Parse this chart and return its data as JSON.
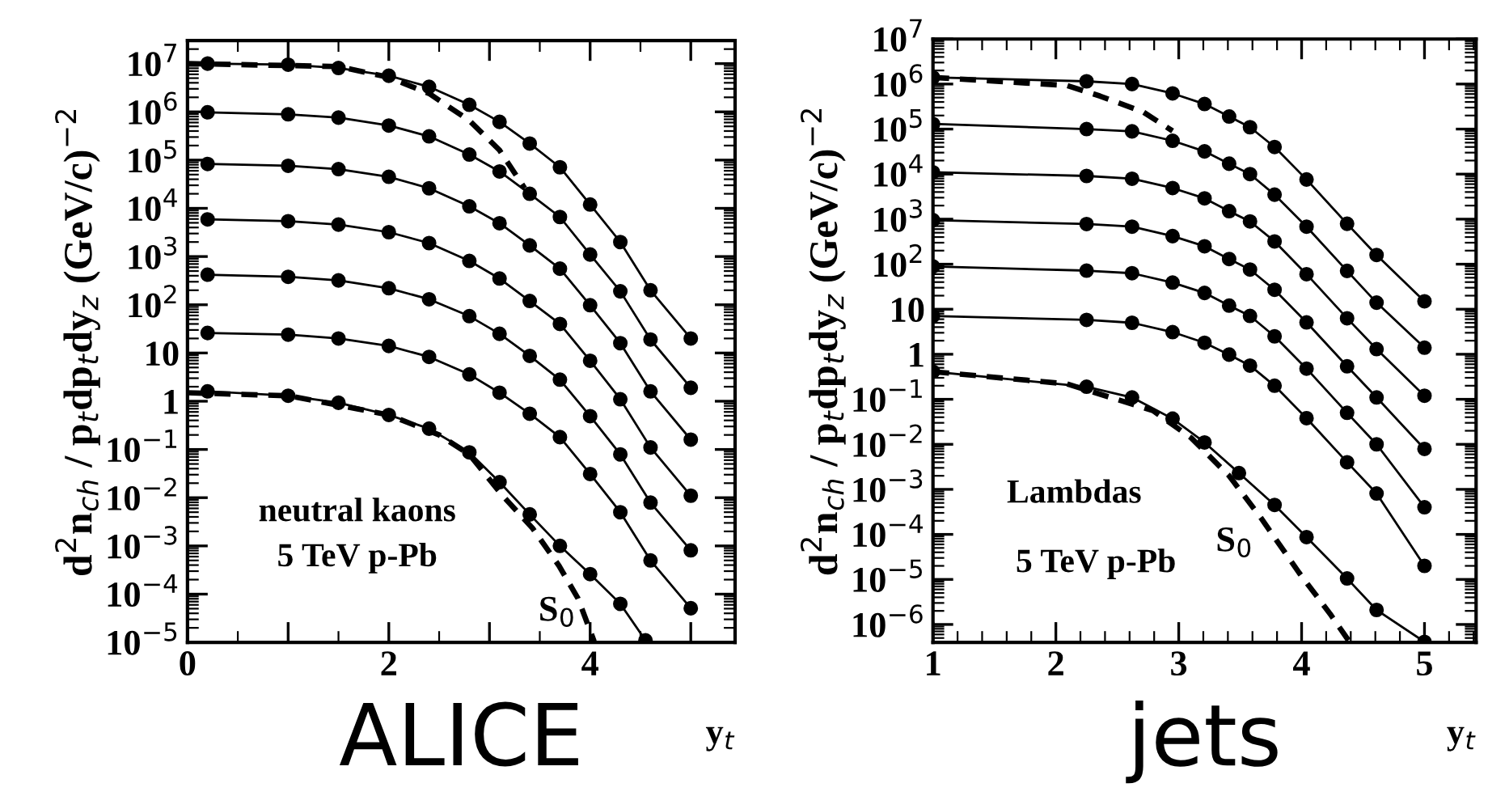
{
  "chart_data": [
    {
      "type": "line",
      "xlabel": "y$_{t}$",
      "ylabel": "d$^{2}$n$_{ch}$ / p$_{t}$dp$_{t}$dy$_{z}$ (GeV/c)$^{−2}$",
      "log": "y",
      "xlim": [
        0,
        5.44
      ],
      "xticks": [
        0,
        {
          "value": 1,
          "label": null
        },
        2,
        {
          "value": 3,
          "label": null
        },
        4,
        {
          "value": 5,
          "label": null
        }
      ],
      "ylim": [
        1e-05,
        30000000.0
      ],
      "yticks": [
        {
          "value": 1e-05,
          "label": "10$^{−5}$"
        },
        {
          "value": 0.0001,
          "label": "10$^{−4}$"
        },
        {
          "value": 0.001,
          "label": "10$^{−3}$"
        },
        {
          "value": 0.01,
          "label": "10$^{−2}$"
        },
        {
          "value": 0.1,
          "label": "10$^{−1}$"
        },
        1,
        10,
        {
          "value": 100,
          "label": "10$^{2}$"
        },
        {
          "value": 1000,
          "label": "10$^{3}$"
        },
        {
          "value": 10000.0,
          "label": "10$^{4}$"
        },
        {
          "value": 100000.0,
          "label": "10$^{5}$"
        },
        {
          "value": 1000000.0,
          "label": "10$^{6}$"
        },
        {
          "value": 10000000.0,
          "label": "10$^{7}$"
        }
      ],
      "annotations": [
        "neutral kaons",
        "5 TeV p-Pb",
        "S$_{0}$",
        "ALICE"
      ],
      "series": [
        {
          "color": "#000000",
          "marker": "circle",
          "line_style": "solid",
          "x": [
            0.2,
            1.0,
            1.5,
            2.0,
            2.4,
            2.8,
            3.1,
            3.4,
            3.7,
            4.0,
            4.3,
            4.6,
            5.0
          ],
          "values": [
            10000000.0,
            9500000.0,
            8100000.0,
            5600000.0,
            3300000.0,
            1400000.0,
            620000.0,
            220000.0,
            71000.0,
            12000.0,
            2000.0,
            200.0,
            20
          ]
        },
        {
          "color": "#000000",
          "marker": "circle",
          "line_style": "solid",
          "x": [
            0.2,
            1.0,
            1.5,
            2.0,
            2.4,
            2.8,
            3.1,
            3.4,
            3.7,
            4.0,
            4.3,
            4.6,
            5.0
          ],
          "values": [
            980000.0,
            890000.0,
            760000.0,
            520000.0,
            310000.0,
            130000.0,
            58000.0,
            20000.0,
            6600.0,
            1100.0,
            190.0,
            19,
            1.9
          ]
        },
        {
          "color": "#000000",
          "marker": "circle",
          "line_style": "solid",
          "x": [
            0.2,
            1.0,
            1.5,
            2.0,
            2.4,
            2.8,
            3.1,
            3.4,
            3.7,
            4.0,
            4.3,
            4.6,
            5.0
          ],
          "values": [
            83000.0,
            76000.0,
            65000.0,
            45000.0,
            26000.0,
            11000.0,
            4900.0,
            1700.0,
            560.0,
            98,
            16,
            1.6,
            0.16
          ]
        },
        {
          "color": "#000000",
          "marker": "circle",
          "line_style": "solid",
          "x": [
            0.2,
            1.0,
            1.5,
            2.0,
            2.4,
            2.8,
            3.1,
            3.4,
            3.7,
            4.0,
            4.3,
            4.6,
            5.0
          ],
          "values": [
            5900.0,
            5400.0,
            4600.0,
            3200.0,
            1900.0,
            810.0,
            350.0,
            120.0,
            40,
            6.9,
            1.1,
            0.11,
            0.011
          ]
        },
        {
          "color": "#000000",
          "marker": "circle",
          "line_style": "solid",
          "x": [
            0.2,
            1.0,
            1.5,
            2.0,
            2.4,
            2.8,
            3.1,
            3.4,
            3.7,
            4.0,
            4.3,
            4.6,
            5.0
          ],
          "values": [
            420.0,
            380.0,
            320.0,
            220.0,
            130.0,
            58,
            25,
            8.7,
            2.8,
            0.49,
            0.079,
            0.0079,
            0.00081
          ]
        },
        {
          "color": "#000000",
          "marker": "circle",
          "line_style": "solid",
          "x": [
            0.2,
            1.0,
            1.5,
            2.0,
            2.4,
            2.8,
            3.1,
            3.4,
            3.7,
            4.0,
            4.3,
            4.6,
            5.0
          ],
          "values": [
            26,
            24,
            20,
            14,
            8.3,
            3.6,
            1.5,
            0.55,
            0.18,
            0.031,
            0.005,
            0.0005,
            5.1e-05
          ]
        },
        {
          "color": "#000000",
          "marker": "circle",
          "line_style": "solid",
          "x": [
            0.2,
            1.0,
            1.5,
            2.0,
            2.4,
            2.8,
            3.1,
            3.4,
            3.7,
            4.0,
            4.3,
            4.55
          ],
          "values": [
            1.6,
            1.3,
            0.93,
            0.52,
            0.27,
            0.087,
            0.021,
            0.0045,
            0.001,
            0.00026,
            6.3e-05,
            1.1e-05
          ]
        },
        {
          "color": "#000000",
          "marker": "none",
          "line_style": "dashed",
          "x": [
            0,
            1.5,
            2.0,
            2.4,
            2.8,
            3.1,
            3.35
          ],
          "values": [
            10000000.0,
            8700000.0,
            5200000.0,
            2400000.0,
            660000.0,
            160000.0,
            26000.0
          ]
        },
        {
          "color": "#000000",
          "marker": "none",
          "line_style": "dashed",
          "x": [
            0,
            1.0,
            2.0,
            2.5,
            2.8,
            3.13,
            3.43,
            3.69,
            3.88,
            4.04
          ],
          "values": [
            1.5,
            1.3,
            0.52,
            0.2,
            0.079,
            0.011,
            0.0023,
            0.00039,
            8.1e-05,
            1.05e-05
          ]
        }
      ]
    },
    {
      "type": "line",
      "xlabel": "y$_{t}$",
      "ylabel": "d$^{2}$n$_{ch}$ / p$_{t}$dp$_{t}$dy$_{z}$ (GeV/c)$^{−2}$",
      "log": "y",
      "xlim": [
        1,
        5.42
      ],
      "xticks": [
        1,
        2,
        3,
        4,
        5
      ],
      "ylim": [
        4e-07,
        10000000.0
      ],
      "yticks": [
        {
          "value": 1e-06,
          "label": "10$^{−6}$"
        },
        {
          "value": 1e-05,
          "label": "10$^{−5}$"
        },
        {
          "value": 0.0001,
          "label": "10$^{−4}$"
        },
        {
          "value": 0.001,
          "label": "10$^{−3}$"
        },
        {
          "value": 0.01,
          "label": "10$^{−2}$"
        },
        {
          "value": 0.1,
          "label": "10$^{−1}$"
        },
        1,
        10,
        {
          "value": 100,
          "label": "10$^{2}$"
        },
        {
          "value": 1000,
          "label": "10$^{3}$"
        },
        {
          "value": 10000.0,
          "label": "10$^{4}$"
        },
        {
          "value": 100000.0,
          "label": "10$^{5}$"
        },
        {
          "value": 1000000.0,
          "label": "10$^{6}$"
        },
        {
          "value": 10000000.0,
          "label": "10$^{7}$"
        }
      ],
      "annotations": [
        "Lambdas",
        "5 TeV p-Pb",
        "S$_{0}$",
        "jets"
      ],
      "series": [
        {
          "color": "#000000",
          "marker": "circle",
          "line_style": "solid",
          "x": [
            1.0,
            2.25,
            2.62,
            2.95,
            3.21,
            3.41,
            3.58,
            3.78,
            4.04,
            4.37,
            4.61,
            5.0
          ],
          "values": [
            1400000.0,
            1150000.0,
            1000000.0,
            620000.0,
            360000.0,
            190000.0,
            110000.0,
            40000.0,
            7600.0,
            790.0,
            160.0,
            15
          ]
        },
        {
          "color": "#000000",
          "marker": "circle",
          "line_style": "solid",
          "x": [
            1.0,
            2.25,
            2.62,
            2.95,
            3.21,
            3.41,
            3.58,
            3.78,
            4.04,
            4.37,
            4.61,
            5.0
          ],
          "values": [
            130000.0,
            100000.0,
            89000.0,
            55000.0,
            32000.0,
            17000.0,
            10000.0,
            3500.0,
            680.0,
            71,
            14,
            1.4
          ]
        },
        {
          "color": "#000000",
          "marker": "circle",
          "line_style": "solid",
          "x": [
            1.0,
            2.25,
            2.62,
            2.95,
            3.21,
            3.41,
            3.58,
            3.78,
            4.04,
            4.37,
            4.61,
            5.0
          ],
          "values": [
            11000.0,
            9100.0,
            7900.0,
            4900.0,
            2900.0,
            1500.0,
            890.0,
            320.0,
            60,
            6.3,
            1.3,
            0.12
          ]
        },
        {
          "color": "#000000",
          "marker": "circle",
          "line_style": "solid",
          "x": [
            1.0,
            2.25,
            2.62,
            2.95,
            3.21,
            3.41,
            3.58,
            3.78,
            4.04,
            4.37,
            4.61,
            5.0
          ],
          "values": [
            950.0,
            780.0,
            680.0,
            420.0,
            250.0,
            130.0,
            76,
            27,
            5.1,
            0.54,
            0.11,
            0.0079
          ]
        },
        {
          "color": "#000000",
          "marker": "circle",
          "line_style": "solid",
          "x": [
            1.0,
            2.25,
            2.62,
            2.95,
            3.21,
            3.41,
            3.58,
            3.78,
            4.04,
            4.37,
            4.61,
            5.0
          ],
          "values": [
            89,
            72,
            63,
            39,
            23,
            12,
            7.1,
            2.5,
            0.48,
            0.05,
            0.01,
            0.0004
          ]
        },
        {
          "color": "#000000",
          "marker": "circle",
          "line_style": "solid",
          "x": [
            1.0,
            2.25,
            2.62,
            2.95,
            3.21,
            3.41,
            3.58,
            3.78,
            4.04,
            4.37,
            4.61,
            5.0
          ],
          "values": [
            7.1,
            5.8,
            5.0,
            3.1,
            1.8,
            0.98,
            0.56,
            0.2,
            0.038,
            0.004,
            0.00081,
            2e-05
          ]
        },
        {
          "color": "#000000",
          "marker": "circle",
          "line_style": "solid",
          "x": [
            1.0,
            2.25,
            2.62,
            2.95,
            3.21,
            3.49,
            3.78,
            4.04,
            4.37,
            4.61,
            5.0
          ],
          "values": [
            0.41,
            0.19,
            0.11,
            0.037,
            0.011,
            0.0023,
            0.00045,
            8.7e-05,
            1.05e-05,
            2.1e-06,
            4.1e-07
          ]
        },
        {
          "color": "#000000",
          "marker": "none",
          "line_style": "dashed",
          "x": [
            1.0,
            2.09,
            2.36,
            2.71,
            2.95
          ],
          "values": [
            1400000.0,
            930000.0,
            540000.0,
            240000.0,
            91000.0
          ]
        },
        {
          "color": "#000000",
          "marker": "none",
          "line_style": "dashed",
          "x": [
            1.0,
            2.09,
            2.79,
            3.1,
            3.41,
            3.67,
            3.98,
            4.24,
            4.39
          ],
          "values": [
            0.41,
            0.22,
            0.056,
            0.014,
            0.002,
            0.00023,
            1.4e-05,
            1.6e-06,
            4.1e-07
          ]
        }
      ]
    }
  ]
}
